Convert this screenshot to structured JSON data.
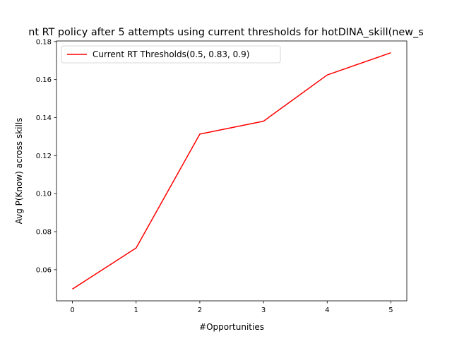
{
  "chart_data": {
    "type": "line",
    "title": "nt RT policy after 5 attempts using current thresholds for hotDINA_skill(new_s",
    "xlabel": "#Opportunities",
    "ylabel": "Avg P(Know) across skills",
    "x": [
      0,
      1,
      2,
      3,
      4,
      5
    ],
    "series": [
      {
        "name": "Current RT Thresholds(0.5, 0.83, 0.9)",
        "color": "#ff0000",
        "values": [
          0.0498,
          0.0714,
          0.1313,
          0.1381,
          0.1624,
          0.1741
        ]
      }
    ],
    "xlim": [
      -0.25,
      5.25
    ],
    "ylim": [
      0.0436,
      0.1803
    ],
    "xticks": [
      0,
      1,
      2,
      3,
      4,
      5
    ],
    "xtick_labels": [
      "0",
      "1",
      "2",
      "3",
      "4",
      "5"
    ],
    "yticks": [
      0.06,
      0.08,
      0.1,
      0.12,
      0.14,
      0.16,
      0.18
    ],
    "ytick_labels": [
      "0.06",
      "0.08",
      "0.10",
      "0.12",
      "0.14",
      "0.16",
      "0.18"
    ],
    "grid": false,
    "legend_position": "upper-left"
  }
}
